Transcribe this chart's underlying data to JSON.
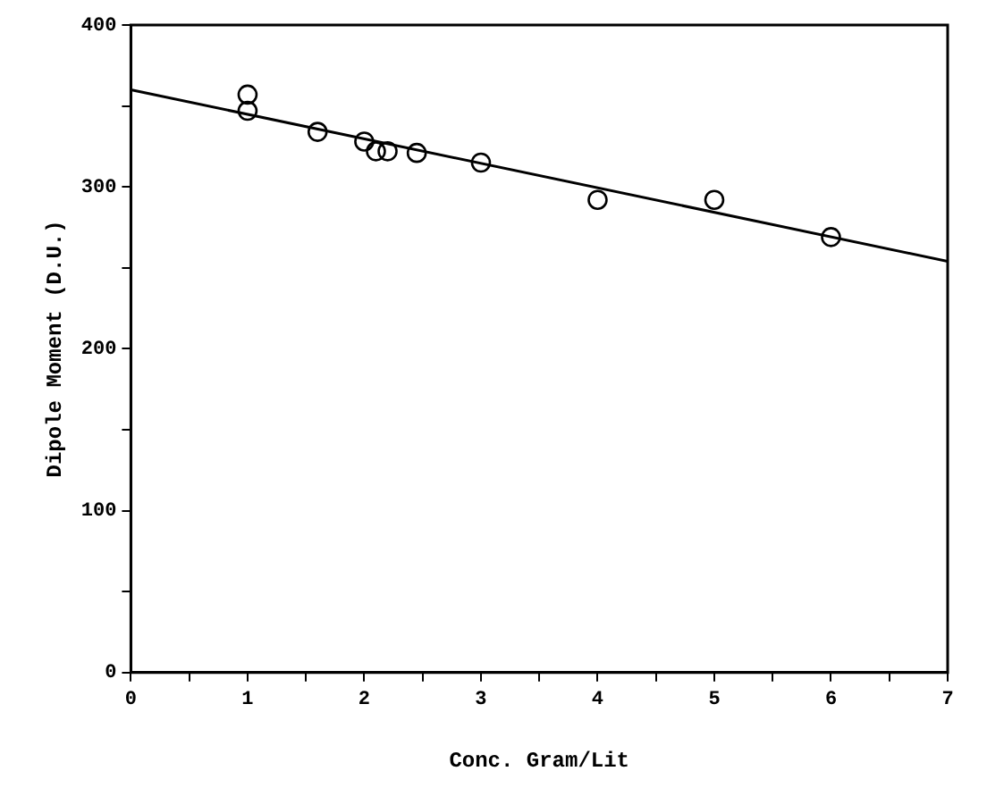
{
  "chart_data": {
    "type": "scatter",
    "xlabel": "Conc. Gram/Lit",
    "ylabel": "Dipole Moment (D.U.)",
    "xlim": [
      0,
      7
    ],
    "ylim": [
      0,
      400
    ],
    "xticks": [
      0,
      {
        "value": 0.5,
        "label": null
      },
      1,
      {
        "value": 1.5,
        "label": null
      },
      2,
      {
        "value": 2.5,
        "label": null
      },
      3,
      {
        "value": 3.5,
        "label": null
      },
      4,
      {
        "value": 4.5,
        "label": null
      },
      5,
      {
        "value": 5.5,
        "label": null
      },
      6,
      {
        "value": 6.5,
        "label": null
      },
      7
    ],
    "yticks": [
      0,
      {
        "value": 50,
        "label": null
      },
      100,
      {
        "value": 150,
        "label": null
      },
      200,
      {
        "value": 250,
        "label": null
      },
      300,
      {
        "value": 350,
        "label": null
      },
      400
    ],
    "grid": false,
    "legend": false,
    "series": [
      {
        "color": "#000000",
        "marker": "circle",
        "x": [
          1,
          1,
          1.6,
          2,
          2.1,
          2.2,
          2.45,
          3,
          4,
          5,
          6
        ],
        "values": [
          357,
          347,
          334,
          328,
          322,
          322,
          321,
          315,
          292,
          292,
          269
        ]
      },
      {
        "type": "line",
        "color": "#000000",
        "marker": "none",
        "line_style": "solid",
        "x": [
          0,
          7
        ],
        "values": [
          360,
          254
        ]
      }
    ]
  }
}
